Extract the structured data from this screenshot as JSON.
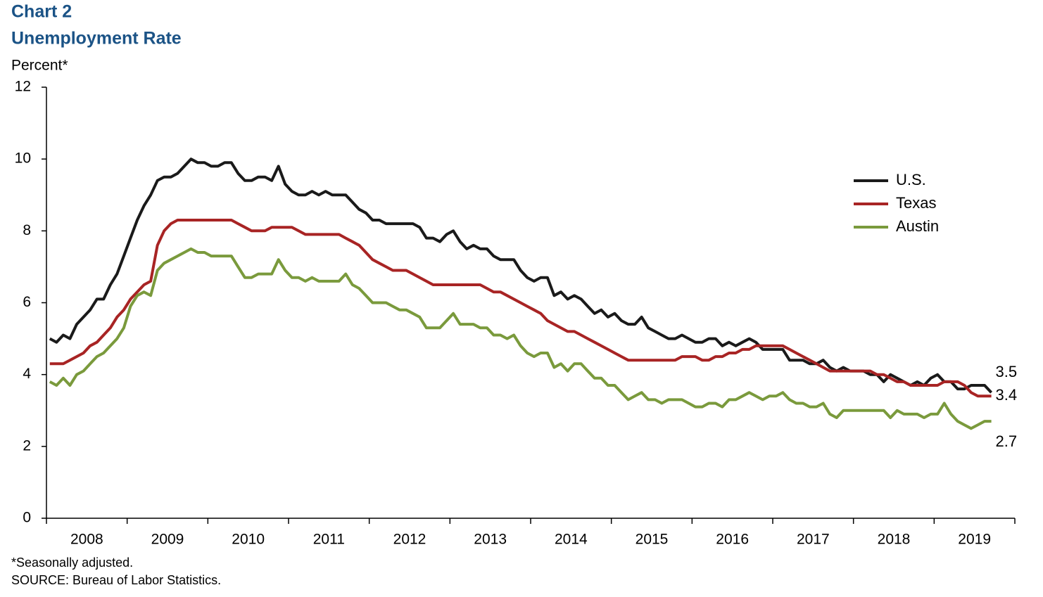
{
  "chart_data": {
    "type": "line",
    "title": "Chart 2",
    "subtitle": "Unemployment Rate",
    "y_label": "Percent*",
    "note": "*Seasonally adjusted.",
    "source": "SOURCE: Bureau of Labor Statistics.",
    "categories": [
      null,
      null,
      null,
      null,
      null,
      null,
      "2008",
      null,
      null,
      null,
      null,
      null,
      null,
      null,
      null,
      null,
      null,
      null,
      "2009",
      null,
      null,
      null,
      null,
      null,
      null,
      null,
      null,
      null,
      null,
      null,
      "2010",
      null,
      null,
      null,
      null,
      null,
      null,
      null,
      null,
      null,
      null,
      null,
      "2011",
      null,
      null,
      null,
      null,
      null,
      null,
      null,
      null,
      null,
      null,
      null,
      "2012",
      null,
      null,
      null,
      null,
      null,
      null,
      null,
      null,
      null,
      null,
      null,
      "2013",
      null,
      null,
      null,
      null,
      null,
      null,
      null,
      null,
      null,
      null,
      null,
      "2014",
      null,
      null,
      null,
      null,
      null,
      null,
      null,
      null,
      null,
      null,
      null,
      "2015",
      null,
      null,
      null,
      null,
      null,
      null,
      null,
      null,
      null,
      null,
      null,
      "2016",
      null,
      null,
      null,
      null,
      null,
      null,
      null,
      null,
      null,
      null,
      null,
      "2017",
      null,
      null,
      null,
      null,
      null,
      null,
      null,
      null,
      null,
      null,
      null,
      "2018",
      null,
      null,
      null,
      null,
      null,
      null,
      null,
      null,
      null,
      null,
      null,
      "2019",
      null,
      null
    ],
    "series": [
      {
        "name": "U.S.",
        "color": "#1a1a1a",
        "values": [
          5.0,
          4.9,
          5.1,
          5.0,
          5.4,
          5.6,
          5.8,
          6.1,
          6.1,
          6.5,
          6.8,
          7.3,
          7.8,
          8.3,
          8.7,
          9.0,
          9.4,
          9.5,
          9.5,
          9.6,
          9.8,
          10.0,
          9.9,
          9.9,
          9.8,
          9.8,
          9.9,
          9.9,
          9.6,
          9.4,
          9.4,
          9.5,
          9.5,
          9.4,
          9.8,
          9.3,
          9.1,
          9.0,
          9.0,
          9.1,
          9.0,
          9.1,
          9.0,
          9.0,
          9.0,
          8.8,
          8.6,
          8.5,
          8.3,
          8.3,
          8.2,
          8.2,
          8.2,
          8.2,
          8.2,
          8.1,
          7.8,
          7.8,
          7.7,
          7.9,
          8.0,
          7.7,
          7.5,
          7.6,
          7.5,
          7.5,
          7.3,
          7.2,
          7.2,
          7.2,
          6.9,
          6.7,
          6.6,
          6.7,
          6.7,
          6.2,
          6.3,
          6.1,
          6.2,
          6.1,
          5.9,
          5.7,
          5.8,
          5.6,
          5.7,
          5.5,
          5.4,
          5.4,
          5.6,
          5.3,
          5.2,
          5.1,
          5.0,
          5.0,
          5.1,
          5.0,
          4.9,
          4.9,
          5.0,
          5.0,
          4.8,
          4.9,
          4.8,
          4.9,
          5.0,
          4.9,
          4.7,
          4.7,
          4.7,
          4.7,
          4.4,
          4.4,
          4.4,
          4.3,
          4.3,
          4.4,
          4.2,
          4.1,
          4.2,
          4.1,
          4.1,
          4.1,
          4.0,
          4.0,
          3.8,
          4.0,
          3.9,
          3.8,
          3.7,
          3.8,
          3.7,
          3.9,
          4.0,
          3.8,
          3.8,
          3.6,
          3.6,
          3.7,
          3.7,
          3.7,
          3.5
        ]
      },
      {
        "name": "Texas",
        "color": "#a82424",
        "values": [
          4.3,
          4.3,
          4.3,
          4.4,
          4.5,
          4.6,
          4.8,
          4.9,
          5.1,
          5.3,
          5.6,
          5.8,
          6.1,
          6.3,
          6.5,
          6.6,
          7.6,
          8.0,
          8.2,
          8.3,
          8.3,
          8.3,
          8.3,
          8.3,
          8.3,
          8.3,
          8.3,
          8.3,
          8.2,
          8.1,
          8.0,
          8.0,
          8.0,
          8.1,
          8.1,
          8.1,
          8.1,
          8.0,
          7.9,
          7.9,
          7.9,
          7.9,
          7.9,
          7.9,
          7.8,
          7.7,
          7.6,
          7.4,
          7.2,
          7.1,
          7.0,
          6.9,
          6.9,
          6.9,
          6.8,
          6.7,
          6.6,
          6.5,
          6.5,
          6.5,
          6.5,
          6.5,
          6.5,
          6.5,
          6.5,
          6.4,
          6.3,
          6.3,
          6.2,
          6.1,
          6.0,
          5.9,
          5.8,
          5.7,
          5.5,
          5.4,
          5.3,
          5.2,
          5.2,
          5.1,
          5.0,
          4.9,
          4.8,
          4.7,
          4.6,
          4.5,
          4.4,
          4.4,
          4.4,
          4.4,
          4.4,
          4.4,
          4.4,
          4.4,
          4.5,
          4.5,
          4.5,
          4.4,
          4.4,
          4.5,
          4.5,
          4.6,
          4.6,
          4.7,
          4.7,
          4.8,
          4.8,
          4.8,
          4.8,
          4.8,
          4.7,
          4.6,
          4.5,
          4.4,
          4.3,
          4.2,
          4.1,
          4.1,
          4.1,
          4.1,
          4.1,
          4.1,
          4.1,
          4.0,
          4.0,
          3.9,
          3.8,
          3.8,
          3.7,
          3.7,
          3.7,
          3.7,
          3.7,
          3.8,
          3.8,
          3.8,
          3.7,
          3.5,
          3.4,
          3.4,
          3.4
        ]
      },
      {
        "name": "Austin",
        "color": "#7a9a3c",
        "values": [
          3.8,
          3.7,
          3.9,
          3.7,
          4.0,
          4.1,
          4.3,
          4.5,
          4.6,
          4.8,
          5.0,
          5.3,
          5.9,
          6.2,
          6.3,
          6.2,
          6.9,
          7.1,
          7.2,
          7.3,
          7.4,
          7.5,
          7.4,
          7.4,
          7.3,
          7.3,
          7.3,
          7.3,
          7.0,
          6.7,
          6.7,
          6.8,
          6.8,
          6.8,
          7.2,
          6.9,
          6.7,
          6.7,
          6.6,
          6.7,
          6.6,
          6.6,
          6.6,
          6.6,
          6.8,
          6.5,
          6.4,
          6.2,
          6.0,
          6.0,
          6.0,
          5.9,
          5.8,
          5.8,
          5.7,
          5.6,
          5.3,
          5.3,
          5.3,
          5.5,
          5.7,
          5.4,
          5.4,
          5.4,
          5.3,
          5.3,
          5.1,
          5.1,
          5.0,
          5.1,
          4.8,
          4.6,
          4.5,
          4.6,
          4.6,
          4.2,
          4.3,
          4.1,
          4.3,
          4.3,
          4.1,
          3.9,
          3.9,
          3.7,
          3.7,
          3.5,
          3.3,
          3.4,
          3.5,
          3.3,
          3.3,
          3.2,
          3.3,
          3.3,
          3.3,
          3.2,
          3.1,
          3.1,
          3.2,
          3.2,
          3.1,
          3.3,
          3.3,
          3.4,
          3.5,
          3.4,
          3.3,
          3.4,
          3.4,
          3.5,
          3.3,
          3.2,
          3.2,
          3.1,
          3.1,
          3.2,
          2.9,
          2.8,
          3.0,
          3.0,
          3.0,
          3.0,
          3.0,
          3.0,
          3.0,
          2.8,
          3.0,
          2.9,
          2.9,
          2.9,
          2.8,
          2.9,
          2.9,
          3.2,
          2.9,
          2.7,
          2.6,
          2.5,
          2.6,
          2.7,
          2.7
        ]
      }
    ],
    "ylim": [
      0,
      12
    ],
    "yticks": [
      0,
      2,
      4,
      6,
      8,
      10,
      12
    ],
    "grid": false,
    "legend": "upper right"
  }
}
